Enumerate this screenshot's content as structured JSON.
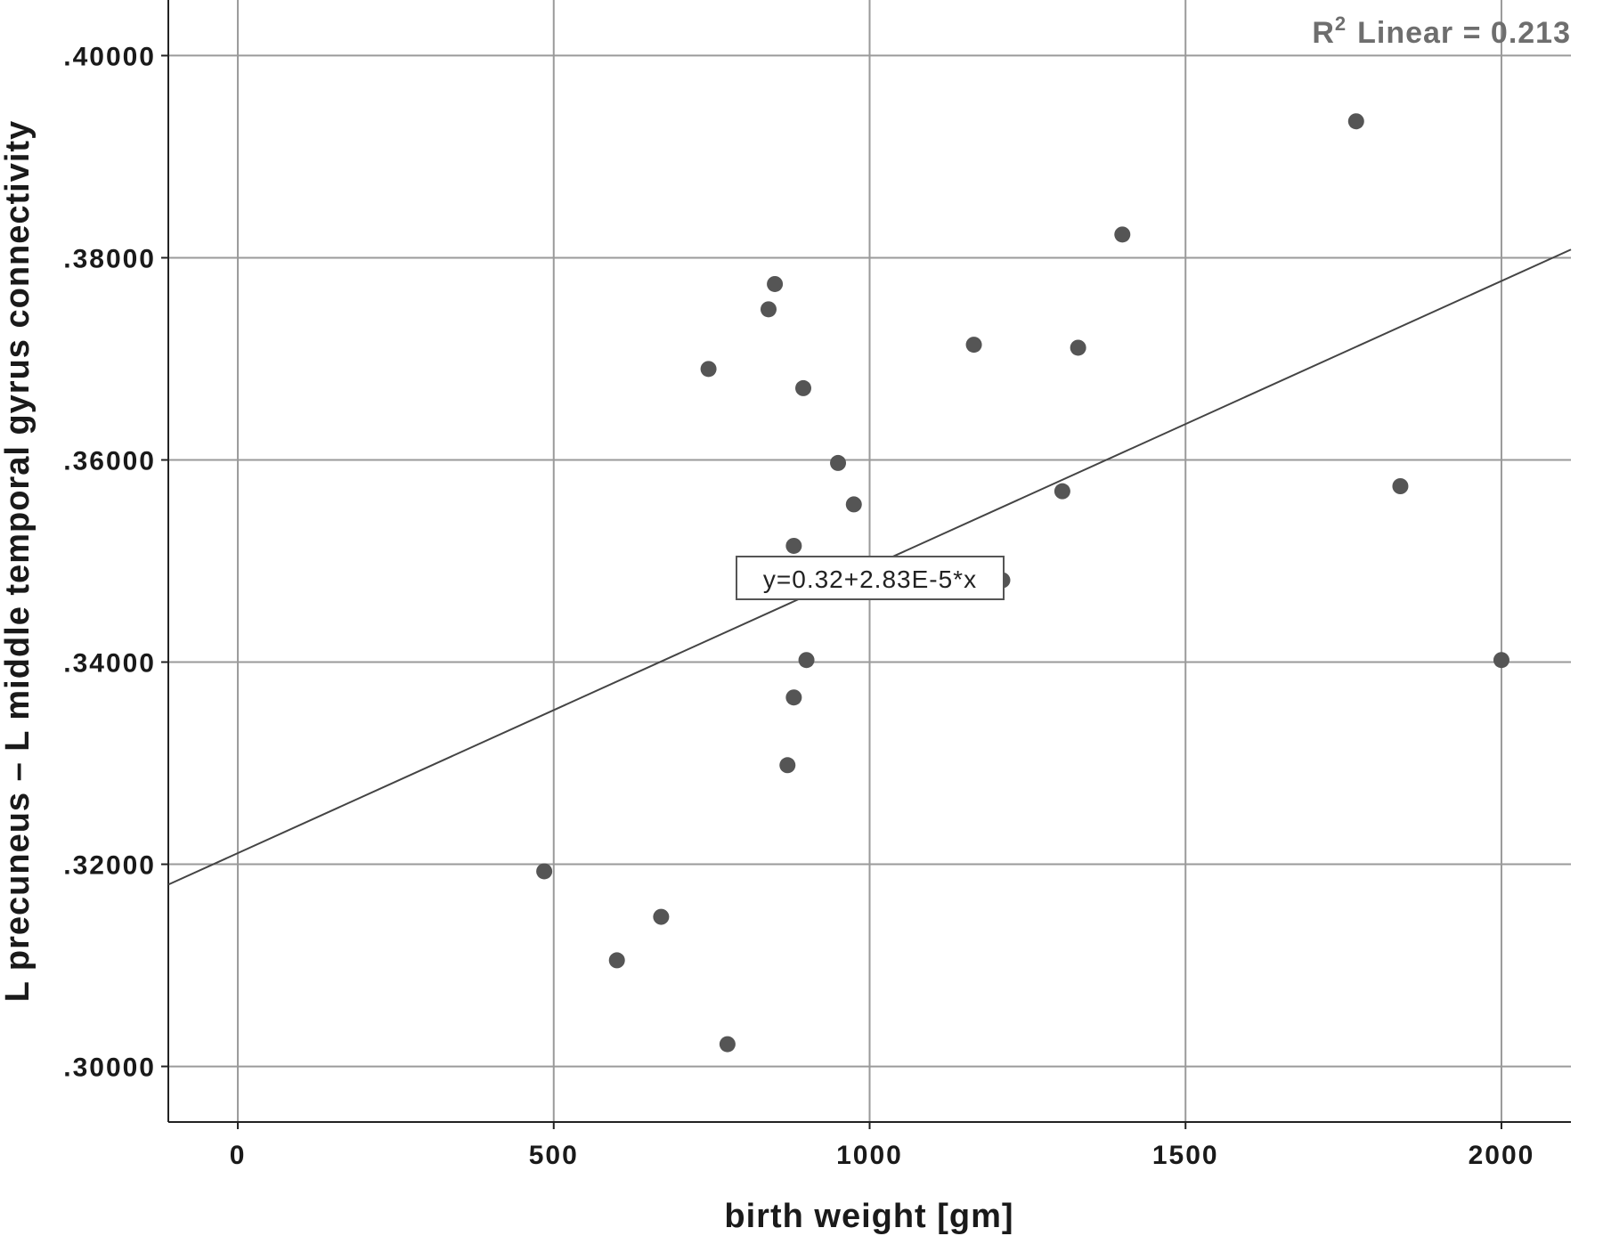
{
  "chart_data": {
    "type": "scatter",
    "xlabel": "birth weight [gm]",
    "ylabel": "L precuneus – L middle temporal gyrus connectivity",
    "xlim": [
      -110,
      2110
    ],
    "ylim": [
      0.2945,
      0.4055
    ],
    "x_ticks": [
      0,
      500,
      1000,
      1500,
      2000
    ],
    "x_tick_labels": [
      "0",
      "500",
      "1000",
      "1500",
      "2000"
    ],
    "y_ticks": [
      0.3,
      0.32,
      0.34,
      0.36,
      0.38,
      0.4
    ],
    "y_tick_labels": [
      ".30000",
      ".32000",
      ".34000",
      ".36000",
      ".38000",
      ".40000"
    ],
    "grid": true,
    "r2_label": "Linear = 0.213",
    "r2_prefix": "R",
    "r2_sup": "2",
    "fit": {
      "intercept": 0.3211,
      "slope": 2.83e-05
    },
    "equation_label": "y=0.32+2.83E-5*x",
    "marker_color": "#555555",
    "line_color": "#444444",
    "points": [
      {
        "x": 485,
        "y": 0.3193
      },
      {
        "x": 600,
        "y": 0.3105
      },
      {
        "x": 670,
        "y": 0.3148
      },
      {
        "x": 745,
        "y": 0.369
      },
      {
        "x": 775,
        "y": 0.3022
      },
      {
        "x": 840,
        "y": 0.3749
      },
      {
        "x": 850,
        "y": 0.3774
      },
      {
        "x": 870,
        "y": 0.3298
      },
      {
        "x": 880,
        "y": 0.3515
      },
      {
        "x": 880,
        "y": 0.3365
      },
      {
        "x": 895,
        "y": 0.3671
      },
      {
        "x": 900,
        "y": 0.3402
      },
      {
        "x": 950,
        "y": 0.3597
      },
      {
        "x": 975,
        "y": 0.3556
      },
      {
        "x": 1165,
        "y": 0.3714
      },
      {
        "x": 1210,
        "y": 0.3481
      },
      {
        "x": 1305,
        "y": 0.3569
      },
      {
        "x": 1330,
        "y": 0.3711
      },
      {
        "x": 1400,
        "y": 0.3823
      },
      {
        "x": 1770,
        "y": 0.3935
      },
      {
        "x": 1840,
        "y": 0.3574
      },
      {
        "x": 2000,
        "y": 0.3402
      }
    ]
  }
}
